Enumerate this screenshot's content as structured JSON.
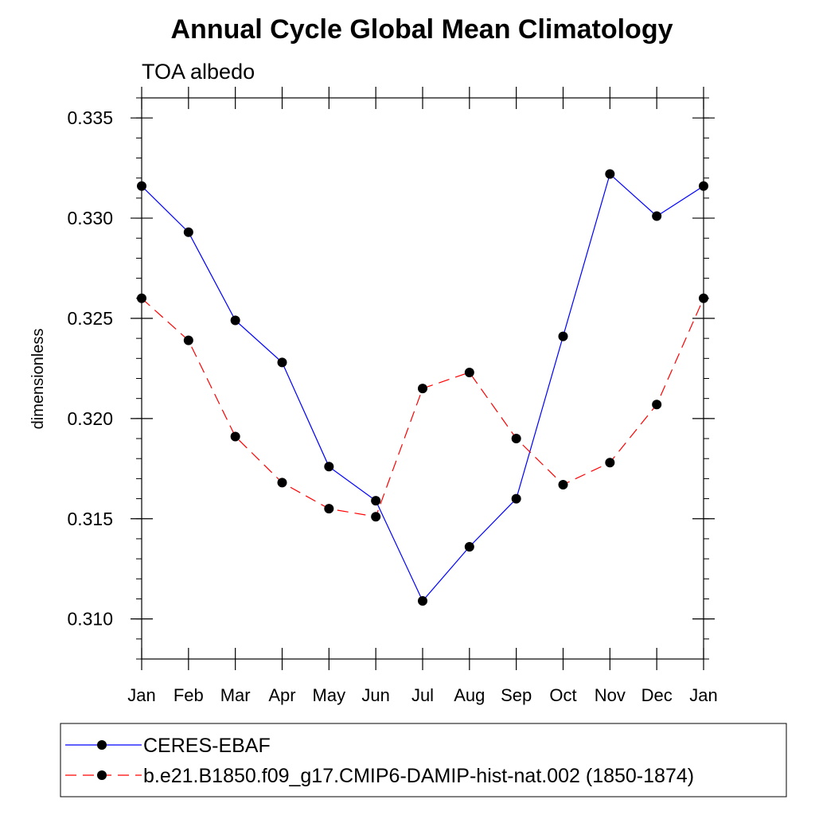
{
  "chart_data": {
    "type": "line",
    "title": "Annual Cycle Global Mean Climatology",
    "subtitle": "TOA albedo",
    "ylabel": "dimensionless",
    "xlabel": "",
    "categories": [
      "Jan",
      "Feb",
      "Mar",
      "Apr",
      "May",
      "Jun",
      "Jul",
      "Aug",
      "Sep",
      "Oct",
      "Nov",
      "Dec",
      "Jan"
    ],
    "ylim": [
      0.308,
      0.336
    ],
    "yticks": [
      0.31,
      0.315,
      0.32,
      0.325,
      0.33,
      0.335
    ],
    "ytick_labels": [
      "0.310",
      "0.315",
      "0.320",
      "0.325",
      "0.330",
      "0.335"
    ],
    "grid": false,
    "legend_position": "bottom",
    "series": [
      {
        "name": "CERES-EBAF",
        "color": "#0000ff",
        "dash": "solid",
        "values": [
          0.3316,
          0.3293,
          0.3249,
          0.3228,
          0.3176,
          0.3159,
          0.3109,
          0.3136,
          0.316,
          0.3241,
          0.3322,
          0.3301,
          0.3316
        ]
      },
      {
        "name": "b.e21.B1850.f09_g17.CMIP6-DAMIP-hist-nat.002 (1850-1874)",
        "color": "#ff0000",
        "dash": "dashed",
        "values": [
          0.326,
          0.3239,
          0.3191,
          0.3168,
          0.3155,
          0.3151,
          0.3215,
          0.3223,
          0.319,
          0.3167,
          0.3178,
          0.3207,
          0.326
        ]
      }
    ]
  }
}
